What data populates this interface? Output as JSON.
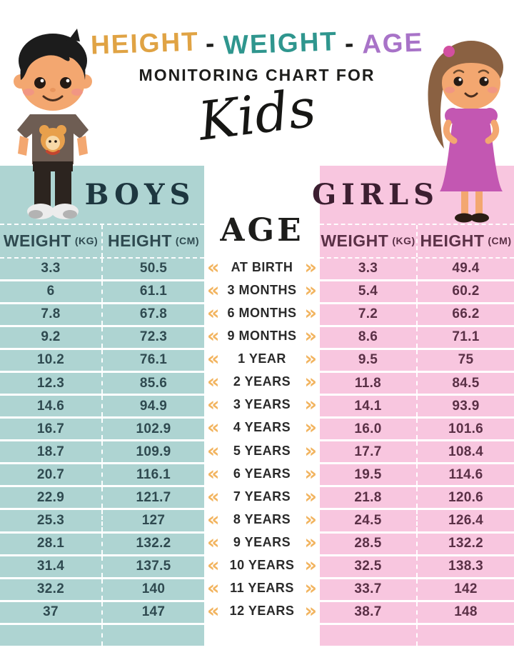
{
  "title": {
    "words": [
      {
        "text": "HEIGHT",
        "color": "#e0a344"
      },
      {
        "text": "-",
        "color": "#1d1d1b"
      },
      {
        "text": "WEIGHT",
        "color": "#2f968e"
      },
      {
        "text": "-",
        "color": "#1d1d1b"
      },
      {
        "text": "AGE",
        "color": "#a873c8"
      }
    ],
    "subtitle": "MONITORING CHART FOR",
    "script_word": "Kids"
  },
  "boys": {
    "label": "BOYS",
    "weight_header": "WEIGHT",
    "weight_unit": "(KG)",
    "height_header": "HEIGHT",
    "height_unit": "(CM)",
    "rows": [
      [
        "3.3",
        "50.5"
      ],
      [
        "6",
        "61.1"
      ],
      [
        "7.8",
        "67.8"
      ],
      [
        "9.2",
        "72.3"
      ],
      [
        "10.2",
        "76.1"
      ],
      [
        "12.3",
        "85.6"
      ],
      [
        "14.6",
        "94.9"
      ],
      [
        "16.7",
        "102.9"
      ],
      [
        "18.7",
        "109.9"
      ],
      [
        "20.7",
        "116.1"
      ],
      [
        "22.9",
        "121.7"
      ],
      [
        "25.3",
        "127"
      ],
      [
        "28.1",
        "132.2"
      ],
      [
        "31.4",
        "137.5"
      ],
      [
        "32.2",
        "140"
      ],
      [
        "37",
        "147"
      ]
    ]
  },
  "girls": {
    "label": "GIRLS",
    "weight_header": "WEIGHT",
    "weight_unit": "(KG)",
    "height_header": "HEIGHT",
    "height_unit": "(CM)",
    "rows": [
      [
        "3.3",
        "49.4"
      ],
      [
        "5.4",
        "60.2"
      ],
      [
        "7.2",
        "66.2"
      ],
      [
        "8.6",
        "71.1"
      ],
      [
        "9.5",
        "75"
      ],
      [
        "11.8",
        "84.5"
      ],
      [
        "14.1",
        "93.9"
      ],
      [
        "16.0",
        "101.6"
      ],
      [
        "17.7",
        "108.4"
      ],
      [
        "19.5",
        "114.6"
      ],
      [
        "21.8",
        "120.6"
      ],
      [
        "24.5",
        "126.4"
      ],
      [
        "28.5",
        "132.2"
      ],
      [
        "32.5",
        "138.3"
      ],
      [
        "33.7",
        "142"
      ],
      [
        "38.7",
        "148"
      ]
    ]
  },
  "age": {
    "label": "AGE",
    "chevron_left": "«",
    "chevron_right": "»",
    "rows": [
      "AT BIRTH",
      "3 MONTHS",
      "6 MONTHS",
      "9 MONTHS",
      "1 YEAR",
      "2 YEARS",
      "3 YEARS",
      "4 YEARS",
      "5 YEARS",
      "6 YEARS",
      "7 YEARS",
      "8 YEARS",
      "9 YEARS",
      "10 YEARS",
      "11 YEARS",
      "12 YEARS"
    ]
  },
  "colors": {
    "boys_bg": "#aed4d2",
    "girls_bg": "#f8c6df",
    "boys_text": "#2f4a50",
    "girls_text": "#5a3046",
    "chevron": "#f2b45f",
    "title_orange": "#e0a344",
    "title_teal": "#2f968e",
    "title_purple": "#a873c8"
  },
  "chart_data": {
    "type": "table",
    "title": "HEIGHT - WEIGHT - AGE MONITORING CHART FOR Kids",
    "categories": [
      "At Birth",
      "3 Months",
      "6 Months",
      "9 Months",
      "1 Year",
      "2 Years",
      "3 Years",
      "4 Years",
      "5 Years",
      "6 Years",
      "7 Years",
      "8 Years",
      "9 Years",
      "10 Years",
      "11 Years",
      "12 Years"
    ],
    "series": [
      {
        "name": "Boys Weight (kg)",
        "values": [
          3.3,
          6,
          7.8,
          9.2,
          10.2,
          12.3,
          14.6,
          16.7,
          18.7,
          20.7,
          22.9,
          25.3,
          28.1,
          31.4,
          32.2,
          37
        ]
      },
      {
        "name": "Boys Height (cm)",
        "values": [
          50.5,
          61.1,
          67.8,
          72.3,
          76.1,
          85.6,
          94.9,
          102.9,
          109.9,
          116.1,
          121.7,
          127,
          132.2,
          137.5,
          140,
          147
        ]
      },
      {
        "name": "Girls Weight (kg)",
        "values": [
          3.3,
          5.4,
          7.2,
          8.6,
          9.5,
          11.8,
          14.1,
          16.0,
          17.7,
          19.5,
          21.8,
          24.5,
          28.5,
          32.5,
          33.7,
          38.7
        ]
      },
      {
        "name": "Girls Height (cm)",
        "values": [
          49.4,
          60.2,
          66.2,
          71.1,
          75,
          84.5,
          93.9,
          101.6,
          108.4,
          114.6,
          120.6,
          126.4,
          132.2,
          138.3,
          142,
          148
        ]
      }
    ]
  }
}
